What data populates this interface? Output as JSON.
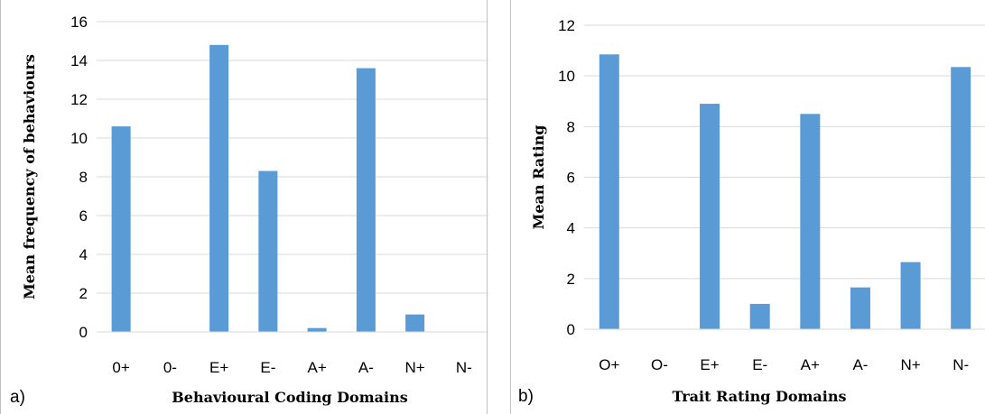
{
  "chart_data": [
    {
      "type": "bar",
      "panel_label": "a)",
      "categories": [
        "0+",
        "0-",
        "E+",
        "E-",
        "A+",
        "A-",
        "N+",
        "N-"
      ],
      "values": [
        10.6,
        0,
        14.8,
        8.3,
        0.2,
        13.6,
        0.9,
        0
      ],
      "xlabel": "Behavioural Coding Domains",
      "ylabel": "Mean frequency of behaviours",
      "ylim": [
        0,
        16
      ],
      "yticks": [
        0,
        2,
        4,
        6,
        8,
        10,
        12,
        14,
        16
      ],
      "grid": true,
      "bar_color": "#5b9bd5"
    },
    {
      "type": "bar",
      "panel_label": "b)",
      "categories": [
        "O+",
        "O-",
        "E+",
        "E-",
        "A+",
        "A-",
        "N+",
        "N-"
      ],
      "values": [
        10.85,
        0,
        8.9,
        1.0,
        8.5,
        1.65,
        2.65,
        10.35
      ],
      "xlabel": "Trait Rating Domains",
      "ylabel": "Mean Rating",
      "ylim": [
        0,
        12
      ],
      "yticks": [
        0,
        2,
        4,
        6,
        8,
        10,
        12
      ],
      "grid": true,
      "bar_color": "#5b9bd5"
    }
  ]
}
